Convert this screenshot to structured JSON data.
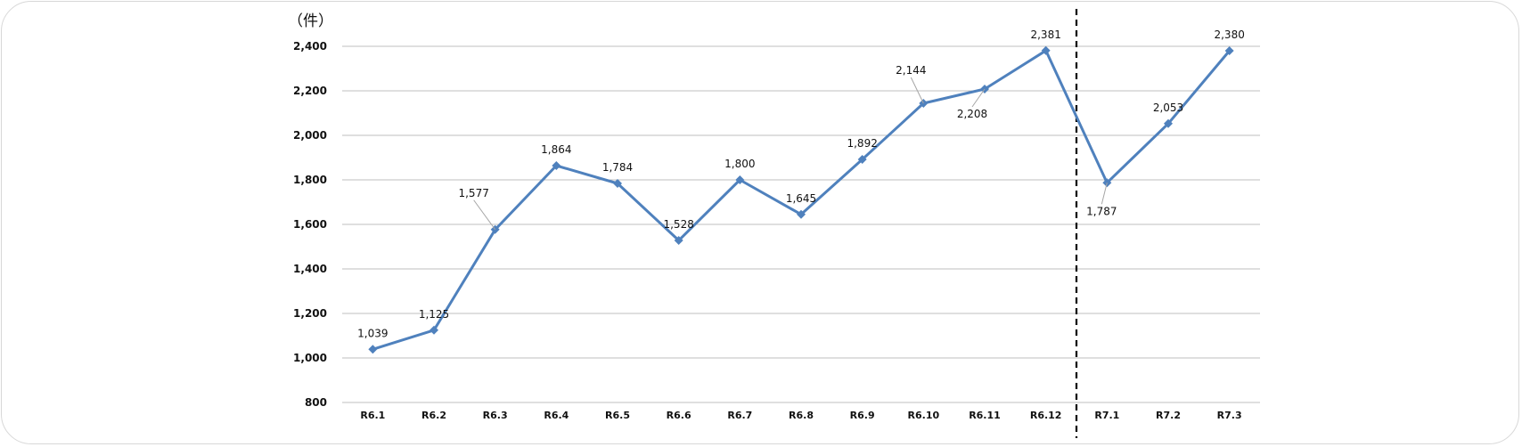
{
  "chart_data": {
    "type": "line",
    "unit_label": "（件）",
    "categories": [
      "R6.1",
      "R6.2",
      "R6.3",
      "R6.4",
      "R6.5",
      "R6.6",
      "R6.7",
      "R6.8",
      "R6.9",
      "R6.10",
      "R6.11",
      "R6.12",
      "R7.1",
      "R7.2",
      "R7.3"
    ],
    "series": [
      {
        "values": [
          1039,
          1125,
          1577,
          1864,
          1784,
          1528,
          1800,
          1645,
          1892,
          2144,
          2208,
          2381,
          1787,
          2053,
          2380
        ]
      }
    ],
    "data_labels": [
      "1,039",
      "1,125",
      "1,577",
      "1,864",
      "1,784",
      "1,528",
      "1,800",
      "1,645",
      "1,892",
      "2,144",
      "2,208",
      "2,381",
      "1,787",
      "2,053",
      "2,380"
    ],
    "y_ticks": [
      800,
      1000,
      1200,
      1400,
      1600,
      1800,
      2000,
      2200,
      2400
    ],
    "y_tick_labels": [
      "800",
      "1,000",
      "1,200",
      "1,400",
      "1,600",
      "1,800",
      "2,000",
      "2,200",
      "2,400"
    ],
    "ylim": [
      800,
      2400
    ],
    "grid": true,
    "legend": "none",
    "divider_after_category": "R6.12",
    "colors": {
      "series": "#4f81bd",
      "grid": "#bfbfbf",
      "divider": "#000000"
    }
  }
}
